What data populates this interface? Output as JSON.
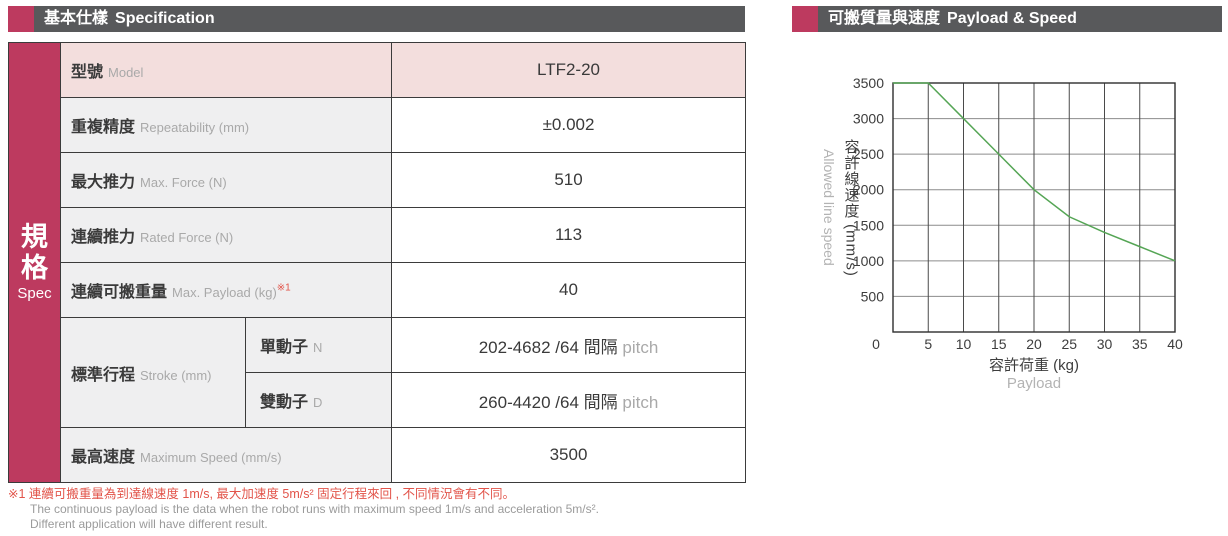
{
  "spec": {
    "header_cn": "基本仕樣",
    "header_en": "Specification",
    "sidebar": {
      "char1": "規",
      "char2": "格",
      "sub": "Spec"
    },
    "rows": [
      {
        "cn": "型號",
        "en": "Model",
        "value": "LTF2-20"
      },
      {
        "cn": "重複精度",
        "en": "Repeatability (mm)",
        "value": "±0.002"
      },
      {
        "cn": "最大推力",
        "en": "Max. Force (N)",
        "value": "510"
      },
      {
        "cn": "連續推力",
        "en": "Rated Force (N)",
        "value": "113"
      },
      {
        "cn": "連續可搬重量",
        "en": "Max. Payload (kg)",
        "note_ref": "※1",
        "value": "40"
      },
      {
        "cn": "標準行程",
        "en": "Stroke (mm)",
        "sub_rows": [
          {
            "cn": "單動子",
            "en": "N",
            "value": "202-4682 /64 間隔",
            "value_suffix": "pitch"
          },
          {
            "cn": "雙動子",
            "en": "D",
            "value": "260-4420 /64 間隔",
            "value_suffix": "pitch"
          }
        ]
      },
      {
        "cn": "最高速度",
        "en": "Maximum Speed (mm/s)",
        "value": "3500"
      }
    ]
  },
  "footnote": {
    "red": "※1 連續可搬重量為到達線速度 1m/s, 最大加速度 5m/s² 固定行程來回 , 不同情況會有不同。",
    "en1": "The continuous payload is the data when the robot runs with maximum speed 1m/s and acceleration 5m/s².",
    "en2": "Different application will have different result."
  },
  "chart_section": {
    "header_cn": "可搬質量與速度",
    "header_en": "Payload & Speed"
  },
  "chart_data": {
    "type": "line",
    "title": "可搬質量與速度 Payload & Speed",
    "xlabel_cn": "容許荷重 (kg)",
    "xlabel_en": "Payload",
    "ylabel_cn": "容許線速度 (mm/s)",
    "ylabel_en": "Allowed line speed",
    "x": [
      0,
      5,
      10,
      15,
      20,
      25,
      30,
      35,
      40
    ],
    "y": [
      3500,
      3500,
      3000,
      2500,
      2000,
      1620,
      1400,
      1200,
      1000
    ],
    "xlim": [
      0,
      40
    ],
    "ylim": [
      0,
      3500
    ],
    "x_ticks": [
      0,
      5,
      10,
      15,
      20,
      25,
      30,
      35,
      40
    ],
    "y_ticks": [
      500,
      1000,
      1500,
      2000,
      2500,
      3000,
      3500
    ],
    "grid": true,
    "legend": false,
    "line_color": "#55a555"
  },
  "colors": {
    "accent_crimson": "#bd3a5f",
    "header_gray": "#58595b",
    "row_pink": "#f3dedd",
    "label_gray_bg": "#efeff0",
    "table_border": "#3b3b3b",
    "footnote_red": "#e2544a",
    "line_green": "#55a555"
  }
}
